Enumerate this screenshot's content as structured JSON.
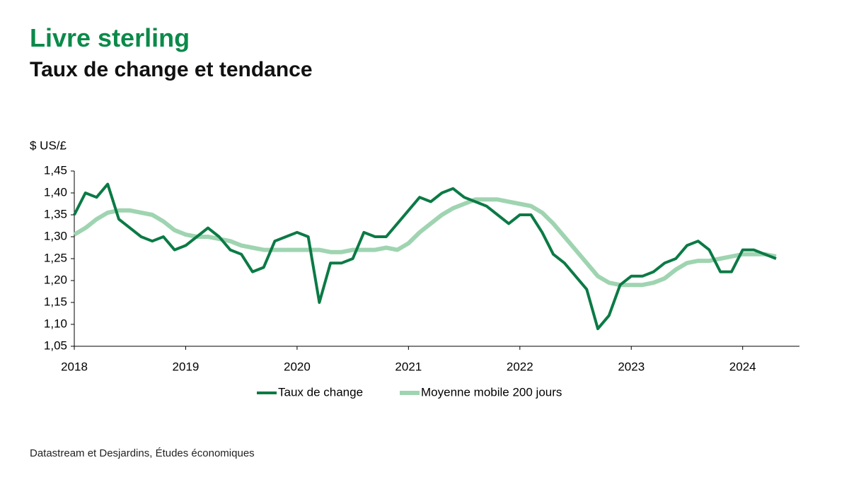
{
  "chart_data": {
    "type": "line",
    "title": "Livre sterling",
    "subtitle": "Taux de change et tendance",
    "y_label": "$ US/£",
    "source": "Datastream et Desjardins, Études économiques",
    "x": [
      2018.0,
      2018.1,
      2018.2,
      2018.3,
      2018.4,
      2018.5,
      2018.6,
      2018.7,
      2018.8,
      2018.9,
      2019.0,
      2019.1,
      2019.2,
      2019.3,
      2019.4,
      2019.5,
      2019.6,
      2019.7,
      2019.8,
      2019.9,
      2020.0,
      2020.1,
      2020.2,
      2020.3,
      2020.4,
      2020.5,
      2020.6,
      2020.7,
      2020.8,
      2020.9,
      2021.0,
      2021.1,
      2021.2,
      2021.3,
      2021.4,
      2021.5,
      2021.6,
      2021.7,
      2021.8,
      2021.9,
      2022.0,
      2022.1,
      2022.2,
      2022.3,
      2022.4,
      2022.5,
      2022.6,
      2022.7,
      2022.8,
      2022.9,
      2023.0,
      2023.1,
      2023.2,
      2023.3,
      2023.4,
      2023.5,
      2023.6,
      2023.7,
      2023.8,
      2023.9,
      2024.0,
      2024.1,
      2024.2,
      2024.3
    ],
    "series": [
      {
        "name": "Taux de change",
        "color": "#0b7a45",
        "width": 4,
        "values": [
          1.35,
          1.4,
          1.39,
          1.42,
          1.34,
          1.32,
          1.3,
          1.29,
          1.3,
          1.27,
          1.28,
          1.3,
          1.32,
          1.3,
          1.27,
          1.26,
          1.22,
          1.23,
          1.29,
          1.3,
          1.31,
          1.3,
          1.15,
          1.24,
          1.24,
          1.25,
          1.31,
          1.3,
          1.3,
          1.33,
          1.36,
          1.39,
          1.38,
          1.4,
          1.41,
          1.39,
          1.38,
          1.37,
          1.35,
          1.33,
          1.35,
          1.35,
          1.31,
          1.26,
          1.24,
          1.21,
          1.18,
          1.09,
          1.12,
          1.19,
          1.21,
          1.21,
          1.22,
          1.24,
          1.25,
          1.28,
          1.29,
          1.27,
          1.22,
          1.22,
          1.27,
          1.27,
          1.26,
          1.25
        ]
      },
      {
        "name": "Moyenne mobile 200 jours",
        "color": "#9fd4b1",
        "width": 6,
        "values": [
          1.305,
          1.32,
          1.34,
          1.355,
          1.36,
          1.36,
          1.355,
          1.35,
          1.335,
          1.315,
          1.305,
          1.3,
          1.3,
          1.295,
          1.29,
          1.28,
          1.275,
          1.27,
          1.27,
          1.27,
          1.27,
          1.27,
          1.27,
          1.265,
          1.265,
          1.27,
          1.27,
          1.27,
          1.275,
          1.27,
          1.285,
          1.31,
          1.33,
          1.35,
          1.365,
          1.375,
          1.385,
          1.385,
          1.385,
          1.38,
          1.375,
          1.37,
          1.355,
          1.33,
          1.3,
          1.27,
          1.24,
          1.21,
          1.195,
          1.19,
          1.19,
          1.19,
          1.195,
          1.205,
          1.225,
          1.24,
          1.245,
          1.245,
          1.25,
          1.255,
          1.26,
          1.26,
          1.26,
          1.255
        ]
      }
    ],
    "xlim": [
      2018,
      2024.51
    ],
    "xticks": [
      2018,
      2019,
      2020,
      2021,
      2022,
      2023,
      2024
    ],
    "ylim": [
      1.05,
      1.45
    ],
    "yticks": [
      {
        "value": 1.05,
        "label": "1,05"
      },
      {
        "value": 1.1,
        "label": "1,10"
      },
      {
        "value": 1.15,
        "label": "1,15"
      },
      {
        "value": 1.2,
        "label": "1,20"
      },
      {
        "value": 1.25,
        "label": "1,25"
      },
      {
        "value": 1.3,
        "label": "1,30"
      },
      {
        "value": 1.35,
        "label": "1,35"
      },
      {
        "value": 1.4,
        "label": "1,40"
      },
      {
        "value": 1.45,
        "label": "1,45"
      }
    ],
    "grid": false,
    "legend": "bottom"
  }
}
